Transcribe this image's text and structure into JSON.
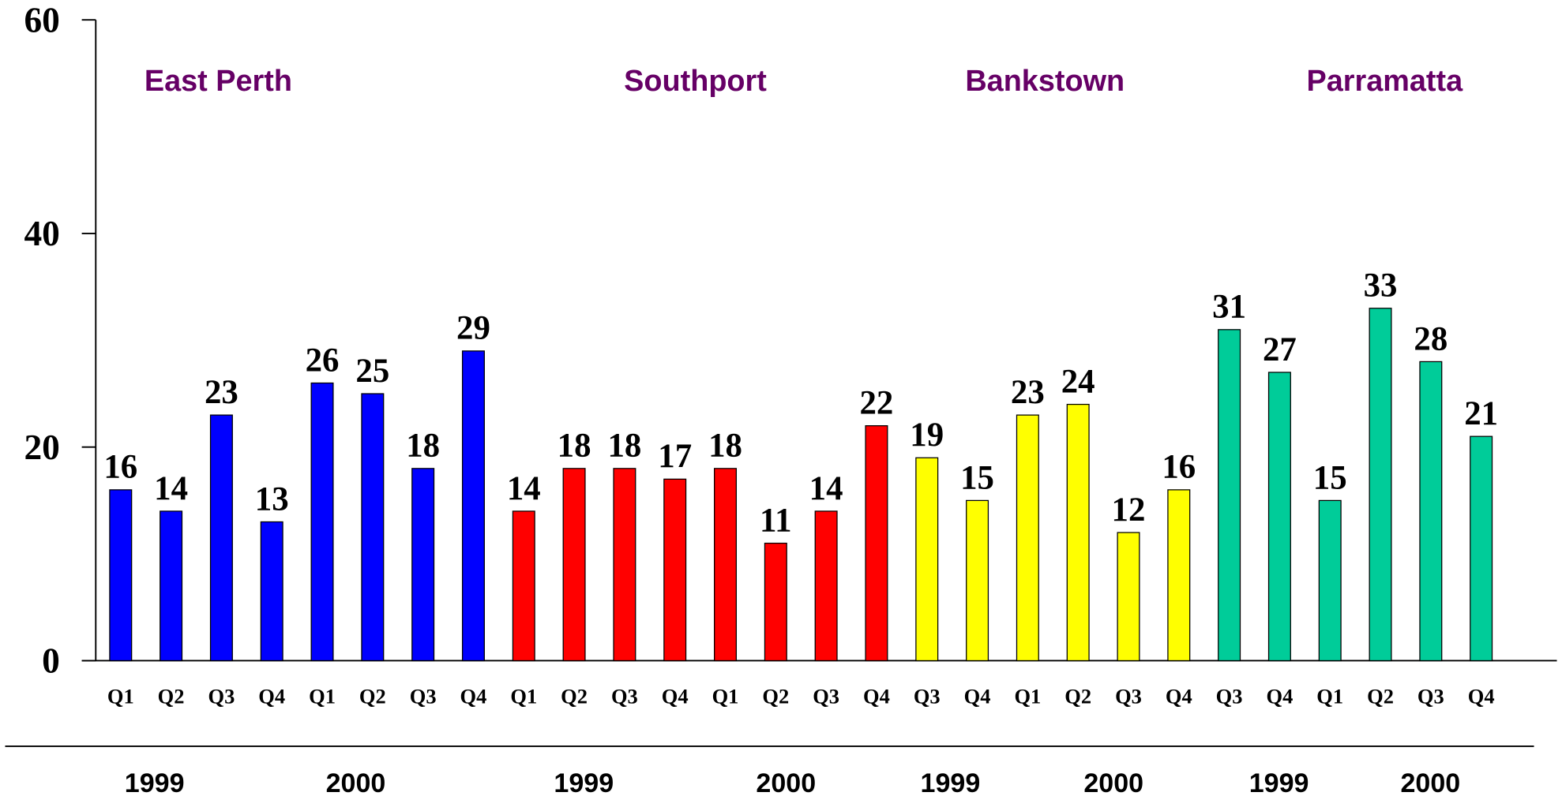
{
  "chart_data": {
    "type": "bar",
    "categories": [
      "Q1",
      "Q2",
      "Q3",
      "Q4",
      "Q1",
      "Q2",
      "Q3",
      "Q4",
      "Q1",
      "Q2",
      "Q3",
      "Q4",
      "Q1",
      "Q2",
      "Q3",
      "Q4",
      "Q3",
      "Q4",
      "Q1",
      "Q2",
      "Q3",
      "Q4",
      "Q3",
      "Q4",
      "Q1",
      "Q2",
      "Q3",
      "Q4"
    ],
    "series": [
      {
        "name": "East Perth",
        "color": "#0000ff",
        "values": [
          16,
          14,
          23,
          13,
          26,
          25,
          18,
          29,
          null,
          null,
          null,
          null,
          null,
          null,
          null,
          null,
          null,
          null,
          null,
          null,
          null,
          null,
          null,
          null,
          null,
          null,
          null,
          null
        ]
      },
      {
        "name": "Southport",
        "color": "#ff0000",
        "values": [
          null,
          null,
          null,
          null,
          null,
          null,
          null,
          null,
          14,
          18,
          18,
          17,
          18,
          11,
          14,
          22,
          null,
          null,
          null,
          null,
          null,
          null,
          null,
          null,
          null,
          null,
          null,
          null
        ]
      },
      {
        "name": "Bankstown",
        "color": "#ffff00",
        "values": [
          null,
          null,
          null,
          null,
          null,
          null,
          null,
          null,
          null,
          null,
          null,
          null,
          null,
          null,
          null,
          null,
          19,
          15,
          23,
          24,
          12,
          16,
          null,
          null,
          null,
          null,
          null,
          null
        ]
      },
      {
        "name": "Parramatta",
        "color": "#00cc99",
        "values": [
          null,
          null,
          null,
          null,
          null,
          null,
          null,
          null,
          null,
          null,
          null,
          null,
          null,
          null,
          null,
          null,
          null,
          null,
          null,
          null,
          null,
          null,
          31,
          27,
          15,
          33,
          28,
          21
        ]
      }
    ],
    "year_labels": [
      "1999",
      "2000",
      "1999",
      "2000",
      "1999",
      "2000",
      "1999",
      "2000"
    ],
    "ylim": [
      0,
      60
    ],
    "yticks": [
      0,
      20,
      40,
      60
    ]
  }
}
